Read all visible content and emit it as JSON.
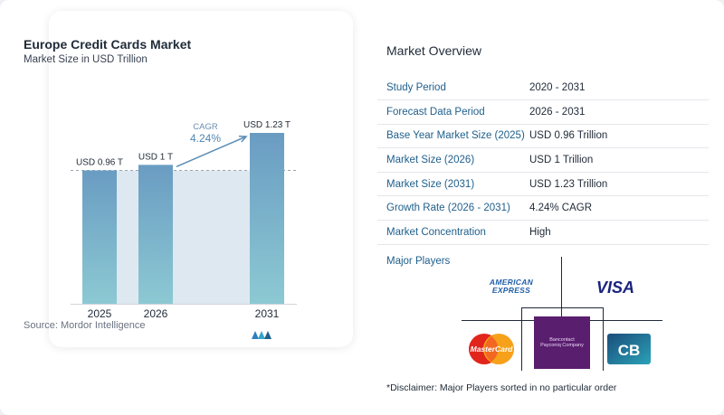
{
  "chart": {
    "title": "Europe Credit Cards Market",
    "subtitle": "Market Size in USD Trillion",
    "source": "Source:  Mordor Intelligence",
    "cagr_label": "CAGR",
    "cagr_value": "4.24%",
    "colors": {
      "bar": "#6a9cc2",
      "bar_bottom": "#8cc9d3",
      "band": "#dde8f1",
      "arrow": "#5b8db5"
    }
  },
  "chart_data": {
    "type": "bar",
    "categories": [
      "2025",
      "2026",
      "2031"
    ],
    "values": [
      0.96,
      1.0,
      1.23
    ],
    "value_labels": [
      "USD 0.96 T",
      "USD 1 T",
      "USD 1.23 T"
    ],
    "ylim": [
      0,
      1.23
    ],
    "grid": false,
    "legend": "none"
  },
  "overview": {
    "title": "Market Overview",
    "rows": [
      {
        "key": "Study Period",
        "value": "2020 - 2031"
      },
      {
        "key": "Forecast Data Period",
        "value": "2026 - 2031"
      },
      {
        "key": "Base Year Market Size (2025)",
        "value": "USD 0.96 Trillion"
      },
      {
        "key": "Market Size (2026)",
        "value": "USD 1 Trillion"
      },
      {
        "key": "Market Size (2031)",
        "value": "USD 1.23 Trillion"
      },
      {
        "key": "Growth Rate (2026 - 2031)",
        "value": "4.24% CAGR"
      },
      {
        "key": "Market Concentration",
        "value": "High"
      }
    ],
    "players_label": "Major Players",
    "players": [
      "AMERICAN EXPRESS",
      "VISA",
      "MasterCard",
      "Bancontact Payconiq Company",
      "CB"
    ],
    "disclaimer": "*Disclaimer: Major Players sorted in no particular order"
  }
}
